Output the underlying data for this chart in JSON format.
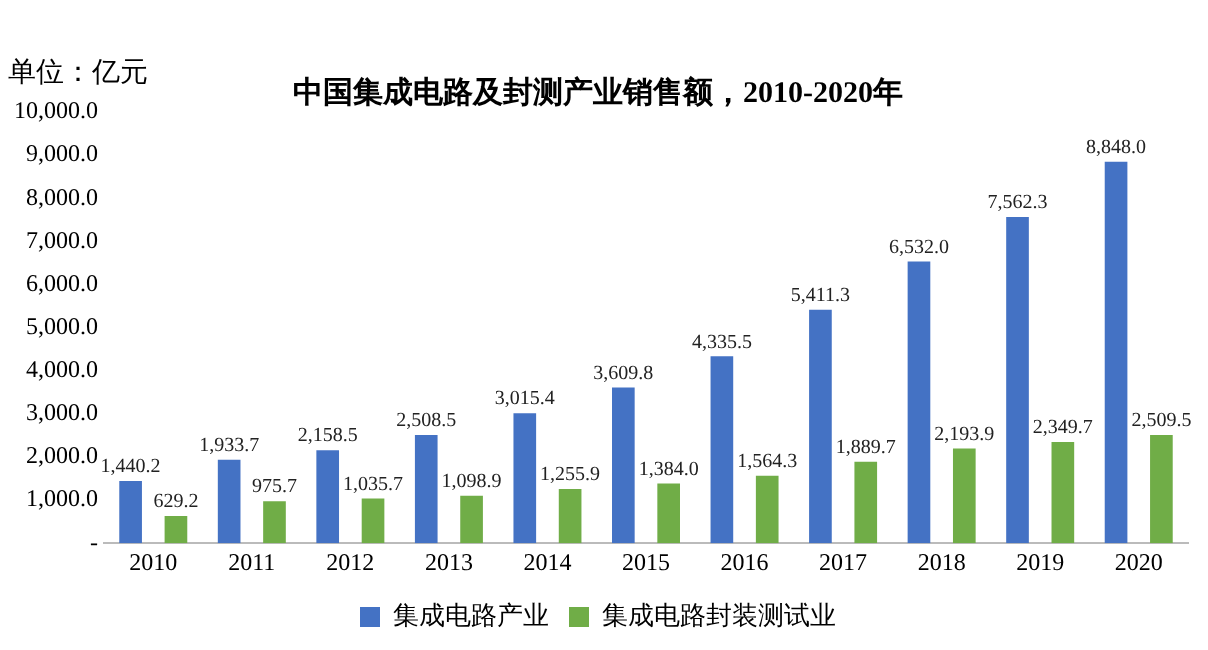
{
  "chart_data": {
    "type": "bar",
    "title": "中国集成电路及封测产业销售额，2010-2020年",
    "ylabel": "单位：亿元",
    "categories": [
      "2010",
      "2011",
      "2012",
      "2013",
      "2014",
      "2015",
      "2016",
      "2017",
      "2018",
      "2019",
      "2020"
    ],
    "series": [
      {
        "name": "集成电路产业",
        "color": "#4472c4",
        "values": [
          1440.2,
          1933.7,
          2158.5,
          2508.5,
          3015.4,
          3609.8,
          4335.5,
          5411.3,
          6532.0,
          7562.3,
          8848.0
        ],
        "value_labels": [
          "1,440.2",
          "1,933.7",
          "2,158.5",
          "2,508.5",
          "3,015.4",
          "3,609.8",
          "4,335.5",
          "5,411.3",
          "6,532.0",
          "7,562.3",
          "8,848.0"
        ]
      },
      {
        "name": "集成电路封装测试业",
        "color": "#70ad47",
        "values": [
          629.2,
          975.7,
          1035.7,
          1098.9,
          1255.9,
          1384.0,
          1564.3,
          1889.7,
          2193.9,
          2349.7,
          2509.5
        ],
        "value_labels": [
          "629.2",
          "975.7",
          "1,035.7",
          "1,098.9",
          "1,255.9",
          "1,384.0",
          "1,564.3",
          "1,889.7",
          "2,193.9",
          "2,349.7",
          "2,509.5"
        ]
      }
    ],
    "ylim": [
      0,
      10000
    ],
    "yticks": [
      {
        "value": 0,
        "label": "-"
      },
      {
        "value": 1000,
        "label": "1,000.0"
      },
      {
        "value": 2000,
        "label": "2,000.0"
      },
      {
        "value": 3000,
        "label": "3,000.0"
      },
      {
        "value": 4000,
        "label": "4,000.0"
      },
      {
        "value": 5000,
        "label": "5,000.0"
      },
      {
        "value": 6000,
        "label": "6,000.0"
      },
      {
        "value": 7000,
        "label": "7,000.0"
      },
      {
        "value": 8000,
        "label": "8,000.0"
      },
      {
        "value": 9000,
        "label": "9,000.0"
      },
      {
        "value": 10000,
        "label": "10,000.0"
      }
    ],
    "grid": false,
    "legend": "bottom"
  }
}
